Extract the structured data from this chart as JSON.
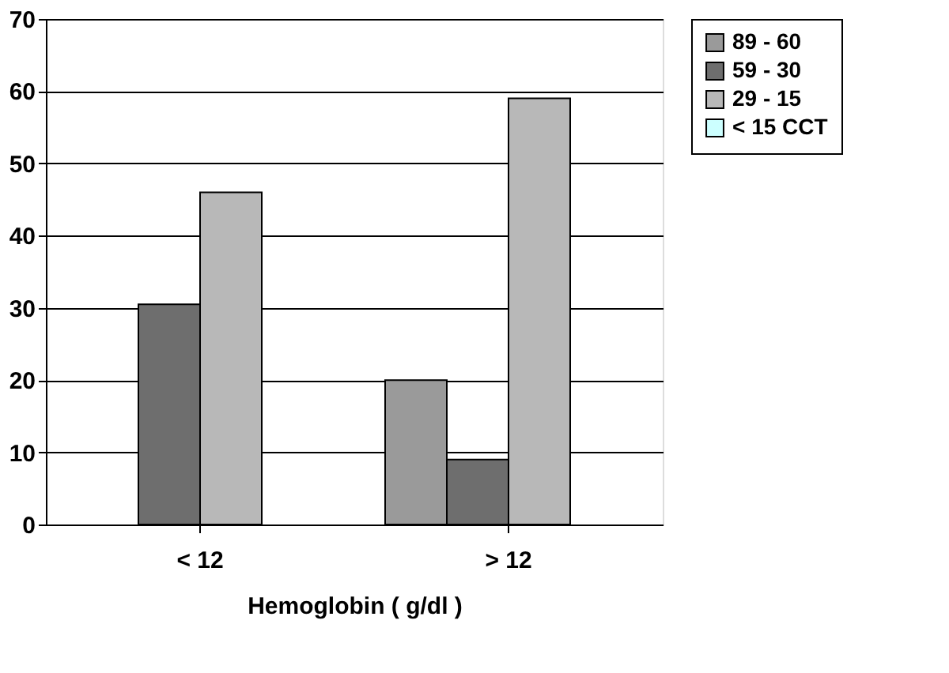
{
  "chart_data": {
    "type": "bar",
    "xlabel": "Hemoglobin ( g/dl )",
    "categories": [
      "< 12",
      "> 12"
    ],
    "series": [
      {
        "name": "89 - 60",
        "color": "#9a9a9a",
        "values": [
          null,
          20
        ]
      },
      {
        "name": "59 - 30",
        "color": "#6e6e6e",
        "values": [
          30.5,
          9
        ]
      },
      {
        "name": "29 - 15",
        "color": "#b8b8b8",
        "values": [
          46,
          59
        ]
      },
      {
        "name": "< 15 CCT",
        "color": "#ccffff",
        "values": [
          null,
          null
        ]
      }
    ],
    "ylim": [
      0,
      70
    ],
    "yticks": [
      0,
      10,
      20,
      30,
      40,
      50,
      60,
      70
    ],
    "grid": "y",
    "legend": "right"
  }
}
